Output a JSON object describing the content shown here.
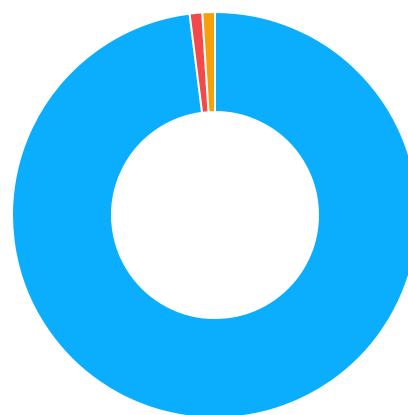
{
  "chart_data": {
    "type": "pie",
    "donut": true,
    "legend": "none",
    "slices": [
      {
        "value": 98.0,
        "color": "#0aaefc"
      },
      {
        "value": 1.0,
        "color": "#f24a4a"
      },
      {
        "value": 1.0,
        "color": "#f5a00a"
      }
    ]
  }
}
